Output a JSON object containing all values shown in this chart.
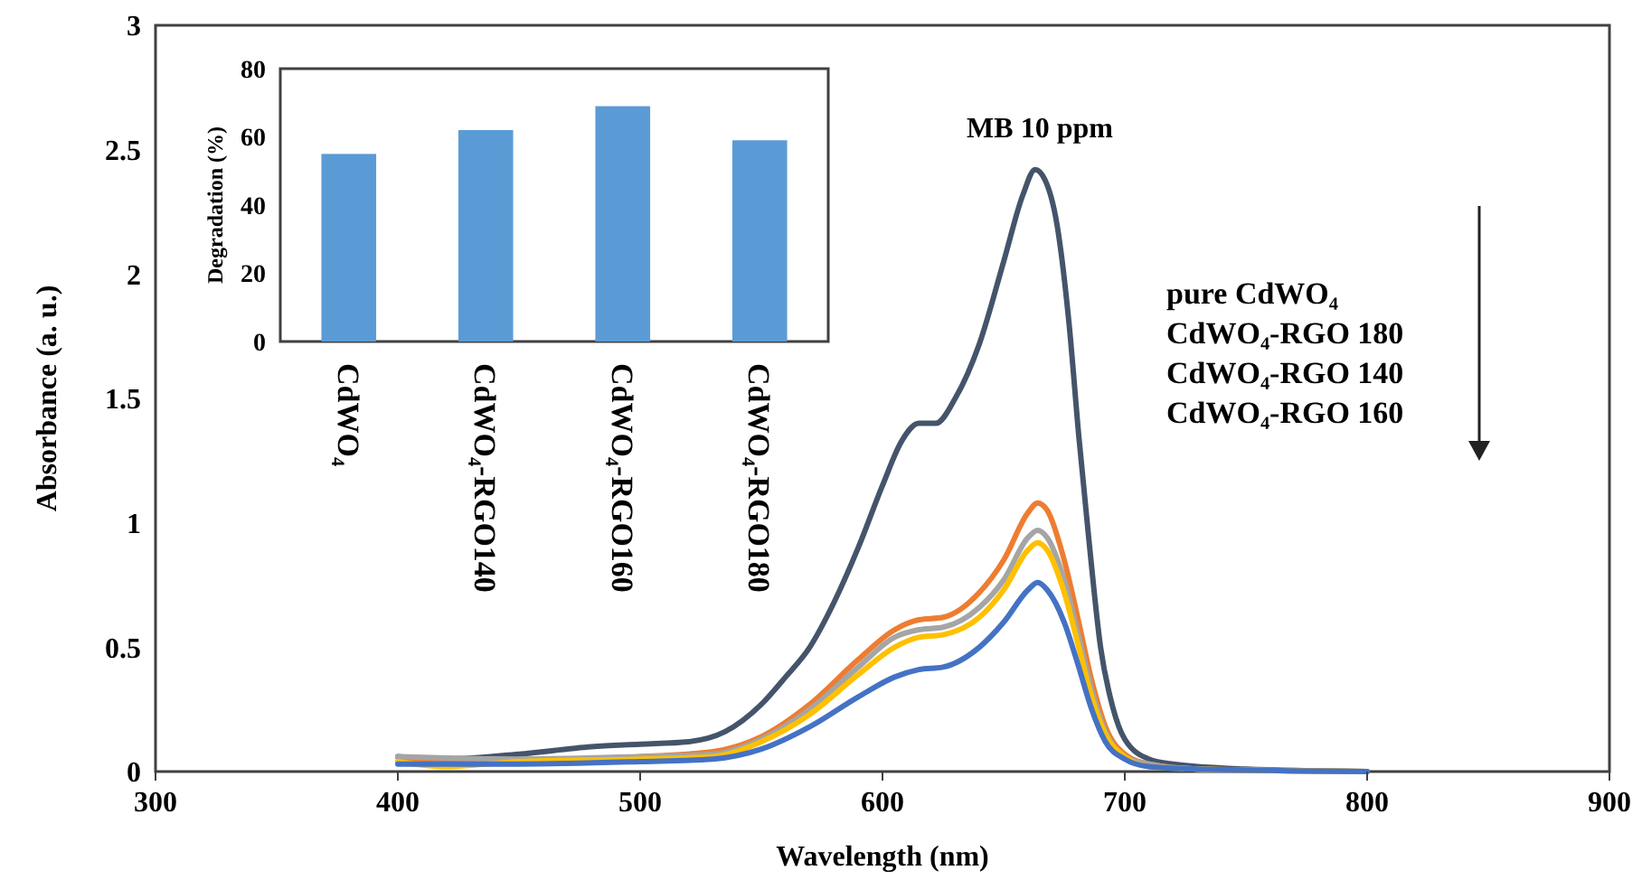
{
  "chart_data": [
    {
      "type": "line",
      "xlabel": "Wavelength (nm)",
      "ylabel": "Absorbance (a. u.)",
      "xlim": [
        300,
        900
      ],
      "xticks": [
        300,
        400,
        500,
        600,
        700,
        800,
        900
      ],
      "ylim": [
        0,
        3
      ],
      "yticks": [
        0,
        0.5,
        1,
        1.5,
        2,
        2.5,
        3
      ],
      "series": [
        {
          "color": "#44546a",
          "x": [
            400,
            420,
            450,
            480,
            500,
            520,
            535,
            550,
            560,
            570,
            580,
            590,
            600,
            608,
            615,
            622,
            630,
            640,
            650,
            658,
            663,
            667,
            672,
            677,
            681,
            685,
            690,
            695,
            700,
            710,
            720,
            750,
            800
          ],
          "values": [
            0.06,
            0.05,
            0.07,
            0.1,
            0.11,
            0.12,
            0.16,
            0.27,
            0.38,
            0.5,
            0.68,
            0.9,
            1.15,
            1.33,
            1.4,
            1.4,
            1.5,
            1.72,
            2.05,
            2.32,
            2.42,
            2.38,
            2.2,
            1.8,
            1.35,
            0.95,
            0.5,
            0.26,
            0.13,
            0.05,
            0.03,
            0.01,
            0
          ]
        },
        {
          "color": "#ed7d31",
          "x": [
            400,
            450,
            500,
            530,
            550,
            570,
            590,
            605,
            615,
            625,
            640,
            650,
            660,
            664,
            668,
            675,
            681,
            686,
            692,
            700,
            710,
            730,
            800
          ],
          "values": [
            0.04,
            0.04,
            0.06,
            0.08,
            0.14,
            0.27,
            0.45,
            0.57,
            0.61,
            0.62,
            0.72,
            0.85,
            1.04,
            1.08,
            1.05,
            0.85,
            0.6,
            0.38,
            0.18,
            0.07,
            0.03,
            0.01,
            0
          ]
        },
        {
          "color": "#a5a5a5",
          "x": [
            400,
            450,
            500,
            530,
            550,
            570,
            590,
            605,
            615,
            625,
            640,
            650,
            660,
            664,
            668,
            675,
            681,
            686,
            692,
            700,
            710,
            730,
            800
          ],
          "values": [
            0.06,
            0.05,
            0.06,
            0.07,
            0.13,
            0.25,
            0.42,
            0.54,
            0.57,
            0.58,
            0.66,
            0.77,
            0.94,
            0.97,
            0.94,
            0.77,
            0.54,
            0.34,
            0.16,
            0.06,
            0.03,
            0.01,
            0
          ]
        },
        {
          "color": "#ffc000",
          "x": [
            400,
            420,
            450,
            500,
            530,
            550,
            570,
            590,
            605,
            615,
            625,
            640,
            650,
            660,
            664,
            668,
            675,
            681,
            686,
            692,
            700,
            710,
            730,
            800
          ],
          "values": [
            0.04,
            0.02,
            0.04,
            0.05,
            0.06,
            0.12,
            0.23,
            0.39,
            0.5,
            0.54,
            0.55,
            0.62,
            0.73,
            0.89,
            0.92,
            0.89,
            0.72,
            0.5,
            0.31,
            0.15,
            0.06,
            0.02,
            0.01,
            0
          ]
        },
        {
          "color": "#4472c4",
          "x": [
            400,
            450,
            500,
            530,
            550,
            570,
            590,
            605,
            615,
            625,
            640,
            650,
            660,
            664,
            668,
            675,
            681,
            686,
            692,
            700,
            710,
            730,
            800
          ],
          "values": [
            0.03,
            0.03,
            0.04,
            0.05,
            0.09,
            0.18,
            0.3,
            0.38,
            0.41,
            0.42,
            0.5,
            0.6,
            0.73,
            0.76,
            0.73,
            0.6,
            0.42,
            0.26,
            0.12,
            0.05,
            0.02,
            0.01,
            0
          ]
        }
      ],
      "annotations": [
        "MB 10 ppm",
        "pure CdWO₄",
        "CdWO₄-RGO 180",
        "CdWO₄-RGO 140",
        "CdWO₄-RGO 160"
      ]
    },
    {
      "type": "bar",
      "ylabel": "Degradation (%)",
      "categories": [
        "CdWO₄",
        "CdWO₄-RGO140",
        "CdWO₄-RGO160",
        "CdWO₄-RGO180"
      ],
      "values": [
        55,
        62,
        69,
        59
      ],
      "color": "#5b9bd5",
      "ylim": [
        0,
        80
      ],
      "yticks": [
        0,
        20,
        40,
        60,
        80
      ]
    }
  ]
}
